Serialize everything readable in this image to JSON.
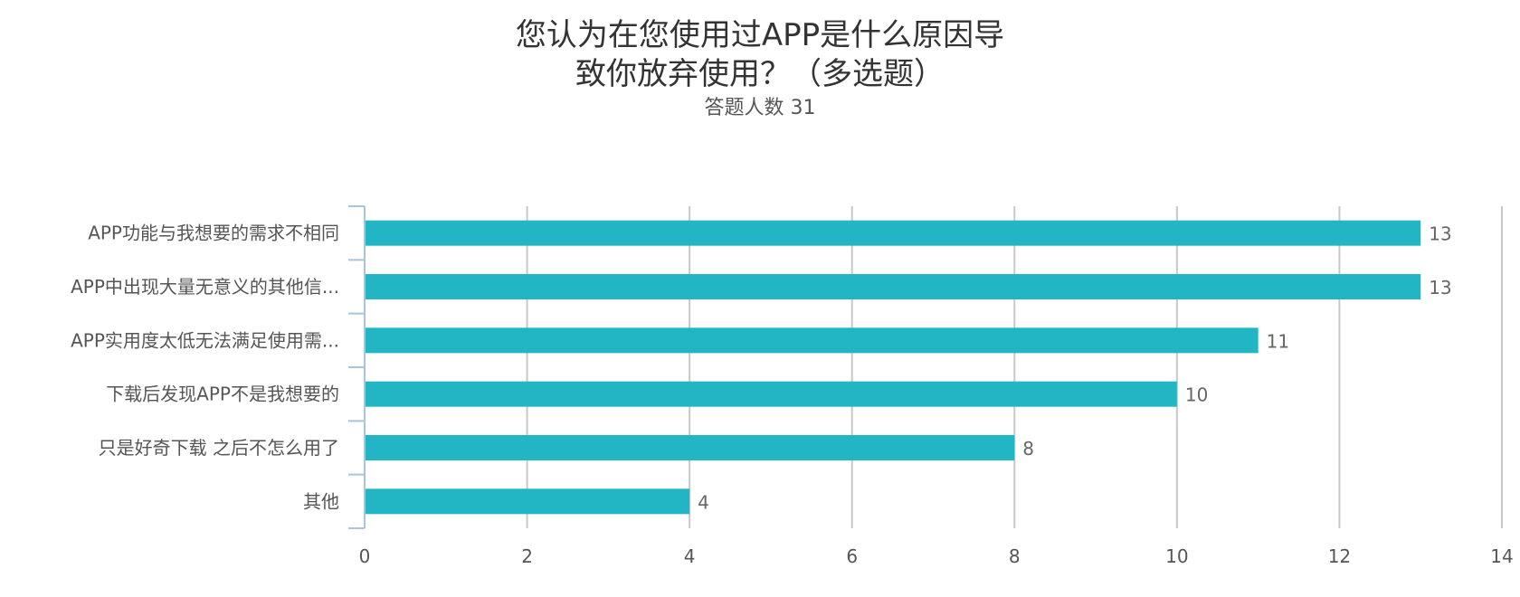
{
  "chart_data": {
    "type": "bar",
    "orientation": "horizontal",
    "title_lines": [
      "您认为在您使用过APP是什么原因导",
      "致你放弃使用？（多选题）"
    ],
    "subtitle": "答题人数 31",
    "categories": [
      "APP功能与我想要的需求不相同",
      "APP中出现大量无意义的其他信...",
      "APP实用度太低无法满足使用需...",
      "下载后发现APP不是我想要的",
      "只是好奇下载 之后不怎么用了",
      "其他"
    ],
    "values": [
      13,
      13,
      11,
      10,
      8,
      4
    ],
    "xlim": [
      0,
      14
    ],
    "xticks": [
      0,
      2,
      4,
      6,
      8,
      10,
      12,
      14
    ],
    "grid": true,
    "legend": "none",
    "bar_color": "#22b5c4"
  }
}
